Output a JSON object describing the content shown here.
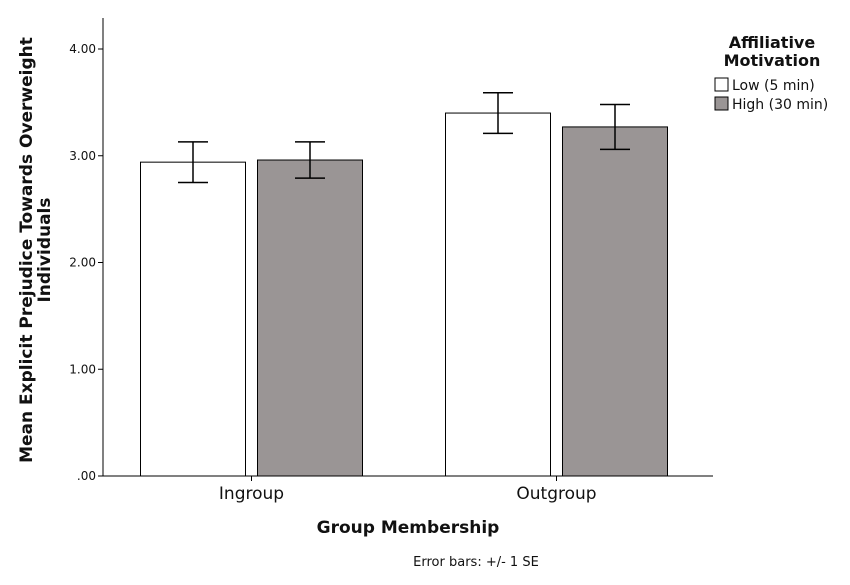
{
  "chart_data": {
    "type": "bar",
    "categories": [
      "Ingroup",
      "Outgroup"
    ],
    "series": [
      {
        "name": "Low (5 min)",
        "values": [
          2.94,
          3.4
        ],
        "se": [
          0.19,
          0.19
        ],
        "color": "#ffffff"
      },
      {
        "name": "High (30 min)",
        "values": [
          2.96,
          3.27
        ],
        "se": [
          0.17,
          0.21
        ],
        "color": "#9a9595"
      }
    ],
    "xlabel": "Group Membership",
    "ylabel_lines": [
      "Mean Explicit Prejudice Towards Overweight",
      "Individuals"
    ],
    "ylim": [
      0,
      4.0
    ],
    "yticks": [
      0,
      1,
      2,
      3,
      4
    ],
    "ytick_labels": [
      ".00",
      "1.00",
      "2.00",
      "3.00",
      "4.00"
    ],
    "legend_title_lines": [
      "Affiliative",
      "Motivation"
    ],
    "legend_position": "top-right",
    "grid": false,
    "note": "Error bars: +/- 1 SE"
  }
}
